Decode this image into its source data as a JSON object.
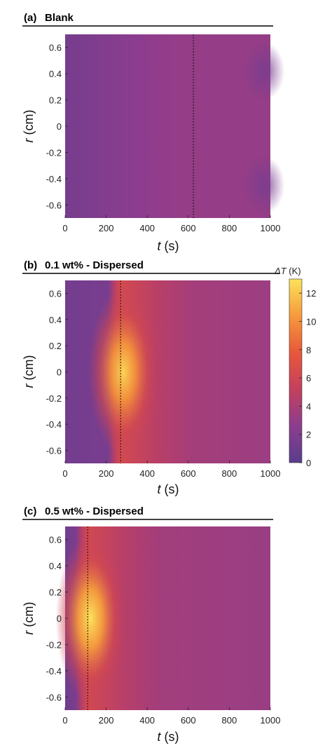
{
  "chart_data": [
    {
      "type": "heatmap",
      "panel_label": "(a)",
      "title": "Blank",
      "xlabel_var": "t",
      "xlabel_unit": "(s)",
      "ylabel_var": "r",
      "ylabel_unit": "(cm)",
      "xlim": [
        0,
        1000
      ],
      "ylim": [
        -0.7,
        0.7
      ],
      "xticks": [
        0,
        200,
        400,
        600,
        800,
        1000
      ],
      "yticks": [
        -0.6,
        -0.4,
        -0.2,
        0,
        0.2,
        0.4,
        0.6
      ],
      "xtick_labels": [
        "0",
        "200",
        "400",
        "600",
        "800",
        "1000"
      ],
      "ytick_labels": [
        "-0.6",
        "-0.4",
        "-0.2",
        "0",
        "0.2",
        "0.4",
        "0.6"
      ],
      "marker_line_t": 625,
      "approx_field": {
        "kind": "uniform",
        "early_dT": 1.5,
        "peak_dT": 3.0,
        "late_dT": 3.0
      }
    },
    {
      "type": "heatmap",
      "panel_label": "(b)",
      "title": "0.1 wt% - Dispersed",
      "xlabel_var": "t",
      "xlabel_unit": "(s)",
      "ylabel_var": "r",
      "ylabel_unit": "(cm)",
      "xlim": [
        0,
        1000
      ],
      "ylim": [
        -0.7,
        0.7
      ],
      "xticks": [
        0,
        200,
        400,
        600,
        800,
        1000
      ],
      "yticks": [
        -0.6,
        -0.4,
        -0.2,
        0,
        0.2,
        0.4,
        0.6
      ],
      "xtick_labels": [
        "0",
        "200",
        "400",
        "600",
        "800",
        "1000"
      ],
      "ytick_labels": [
        "-0.6",
        "-0.4",
        "-0.2",
        "0",
        "0.2",
        "0.4",
        "0.6"
      ],
      "marker_line_t": 270,
      "approx_field": {
        "kind": "hotspot",
        "peak_t": 270,
        "peak_dT": 12.5,
        "late_dT": 3.3
      }
    },
    {
      "type": "heatmap",
      "panel_label": "(c)",
      "title": "0.5 wt% - Dispersed",
      "xlabel_var": "t",
      "xlabel_unit": "(s)",
      "ylabel_var": "r",
      "ylabel_unit": "(cm)",
      "xlim": [
        0,
        1000
      ],
      "ylim": [
        -0.7,
        0.7
      ],
      "xticks": [
        0,
        200,
        400,
        600,
        800,
        1000
      ],
      "yticks": [
        -0.6,
        -0.4,
        -0.2,
        0,
        0.2,
        0.4,
        0.6
      ],
      "xtick_labels": [
        "0",
        "200",
        "400",
        "600",
        "800",
        "1000"
      ],
      "ytick_labels": [
        "-0.6",
        "-0.4",
        "-0.2",
        "0",
        "0.2",
        "0.4",
        "0.6"
      ],
      "marker_line_t": 110,
      "approx_field": {
        "kind": "hotspot",
        "peak_t": 110,
        "peak_dT": 13.0,
        "late_dT": 3.2
      }
    }
  ],
  "colorbar": {
    "label_var": "ΔT",
    "label_unit": "(K)",
    "range": [
      0,
      13
    ],
    "ticks": [
      0,
      2,
      4,
      6,
      8,
      10,
      12
    ],
    "tick_labels": [
      "0",
      "2",
      "4",
      "6",
      "8",
      "10",
      "12"
    ],
    "colormap": "plasma-like",
    "colors": [
      "#5a3d8c",
      "#8c3d8f",
      "#c4405e",
      "#e8583a",
      "#f59a3c",
      "#fbe25a"
    ]
  }
}
